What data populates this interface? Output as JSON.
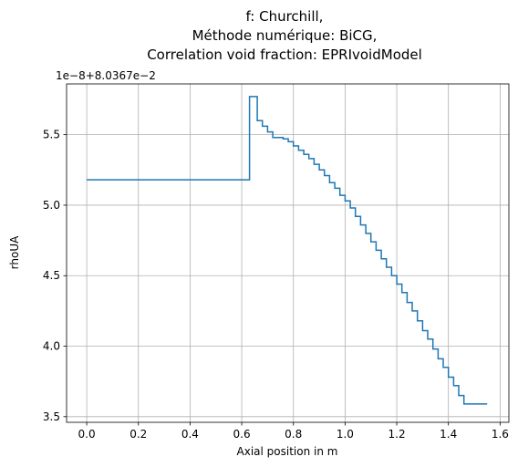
{
  "chart_data": {
    "type": "line",
    "title_lines": [
      "f: Churchill,",
      "Méthode numérique: BiCG,",
      "Correlation void fraction: EPRIvoidModel"
    ],
    "xlabel": "Axial position in m",
    "ylabel": "rhoUA",
    "y_offset_label": "1e−8+8.0367e−2",
    "xlim": [
      -0.078,
      1.634
    ],
    "ylim": [
      3.46,
      5.86
    ],
    "x_ticks": [
      0.0,
      0.2,
      0.4,
      0.6,
      0.8,
      1.0,
      1.2,
      1.4,
      1.6
    ],
    "x_tick_labels": [
      "0.0",
      "0.2",
      "0.4",
      "0.6",
      "0.8",
      "1.0",
      "1.2",
      "1.4",
      "1.6"
    ],
    "y_ticks": [
      3.5,
      4.0,
      4.5,
      5.0,
      5.5
    ],
    "y_tick_labels": [
      "3.5",
      "4.0",
      "4.5",
      "5.0",
      "5.5"
    ],
    "grid": true,
    "step": "post",
    "color": "#1f77b4",
    "series": [
      {
        "x": [
          0.0,
          0.63,
          0.66,
          0.68,
          0.7,
          0.72,
          0.76,
          0.78,
          0.8,
          0.82,
          0.84,
          0.86,
          0.88,
          0.9,
          0.92,
          0.94,
          0.96,
          0.98,
          1.0,
          1.02,
          1.04,
          1.06,
          1.08,
          1.1,
          1.12,
          1.14,
          1.16,
          1.18,
          1.2,
          1.22,
          1.24,
          1.26,
          1.28,
          1.3,
          1.32,
          1.34,
          1.36,
          1.38,
          1.4,
          1.42,
          1.44,
          1.46,
          1.48,
          1.5,
          1.52,
          1.55
        ],
        "y": [
          5.18,
          5.77,
          5.6,
          5.56,
          5.52,
          5.48,
          5.47,
          5.45,
          5.42,
          5.39,
          5.36,
          5.33,
          5.29,
          5.25,
          5.21,
          5.16,
          5.12,
          5.07,
          5.03,
          4.98,
          4.92,
          4.86,
          4.8,
          4.74,
          4.68,
          4.62,
          4.56,
          4.5,
          4.44,
          4.38,
          4.31,
          4.25,
          4.18,
          4.11,
          4.05,
          3.98,
          3.91,
          3.85,
          3.78,
          3.72,
          3.65,
          3.59,
          3.59,
          3.59,
          3.59,
          3.59
        ]
      }
    ]
  }
}
